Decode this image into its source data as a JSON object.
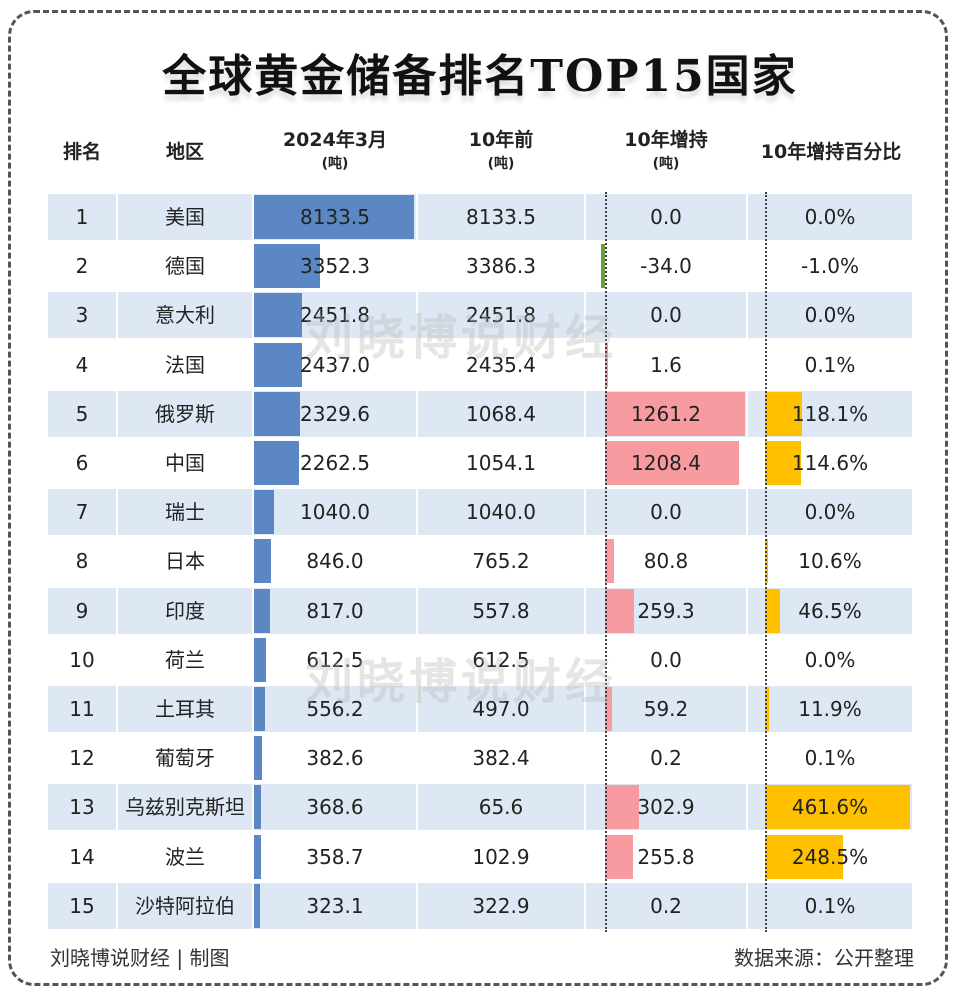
{
  "title": "全球黄金储备排名TOP15国家",
  "headers": {
    "rank": "排名",
    "region": "地区",
    "current": "2024年3月",
    "current_unit": "(吨)",
    "ago": "10年前",
    "ago_unit": "(吨)",
    "change": "10年增持",
    "change_unit": "(吨)",
    "pct": "10年增持百分比"
  },
  "rows": [
    {
      "rank": "1",
      "region": "美国",
      "current": "8133.5",
      "ago": "8133.5",
      "change": "0.0",
      "pct": "0.0%"
    },
    {
      "rank": "2",
      "region": "德国",
      "current": "3352.3",
      "ago": "3386.3",
      "change": "-34.0",
      "pct": "-1.0%"
    },
    {
      "rank": "3",
      "region": "意大利",
      "current": "2451.8",
      "ago": "2451.8",
      "change": "0.0",
      "pct": "0.0%"
    },
    {
      "rank": "4",
      "region": "法国",
      "current": "2437.0",
      "ago": "2435.4",
      "change": "1.6",
      "pct": "0.1%"
    },
    {
      "rank": "5",
      "region": "俄罗斯",
      "current": "2329.6",
      "ago": "1068.4",
      "change": "1261.2",
      "pct": "118.1%"
    },
    {
      "rank": "6",
      "region": "中国",
      "current": "2262.5",
      "ago": "1054.1",
      "change": "1208.4",
      "pct": "114.6%"
    },
    {
      "rank": "7",
      "region": "瑞士",
      "current": "1040.0",
      "ago": "1040.0",
      "change": "0.0",
      "pct": "0.0%"
    },
    {
      "rank": "8",
      "region": "日本",
      "current": "846.0",
      "ago": "765.2",
      "change": "80.8",
      "pct": "10.6%"
    },
    {
      "rank": "9",
      "region": "印度",
      "current": "817.0",
      "ago": "557.8",
      "change": "259.3",
      "pct": "46.5%"
    },
    {
      "rank": "10",
      "region": "荷兰",
      "current": "612.5",
      "ago": "612.5",
      "change": "0.0",
      "pct": "0.0%"
    },
    {
      "rank": "11",
      "region": "土耳其",
      "current": "556.2",
      "ago": "497.0",
      "change": "59.2",
      "pct": "11.9%"
    },
    {
      "rank": "12",
      "region": "葡萄牙",
      "current": "382.6",
      "ago": "382.4",
      "change": "0.2",
      "pct": "0.1%"
    },
    {
      "rank": "13",
      "region": "乌兹别克斯坦",
      "current": "368.6",
      "ago": "65.6",
      "change": "302.9",
      "pct": "461.6%"
    },
    {
      "rank": "14",
      "region": "波兰",
      "current": "358.7",
      "ago": "102.9",
      "change": "255.8",
      "pct": "248.5%"
    },
    {
      "rank": "15",
      "region": "沙特阿拉伯",
      "current": "323.1",
      "ago": "322.9",
      "change": "0.2",
      "pct": "0.1%"
    }
  ],
  "footer": {
    "credit": "刘晓博说财经 | 制图",
    "source": "数据来源：公开整理"
  },
  "watermark": "刘晓博说财经",
  "colors": {
    "current_bar": "#5b87c5",
    "change_positive_bar": "#f79ba0",
    "change_negative_bar": "#6a9f3e",
    "pct_bar": "#ffc000",
    "row_stripe": "#dde8f4"
  },
  "chart_data": {
    "type": "table",
    "title": "全球黄金储备排名TOP15国家",
    "columns": [
      "排名",
      "地区",
      "2024年3月(吨)",
      "10年前(吨)",
      "10年增持(吨)",
      "10年增持百分比"
    ],
    "categories": [
      "美国",
      "德国",
      "意大利",
      "法国",
      "俄罗斯",
      "中国",
      "瑞士",
      "日本",
      "印度",
      "荷兰",
      "土耳其",
      "葡萄牙",
      "乌兹别克斯坦",
      "波兰",
      "沙特阿拉伯"
    ],
    "series": [
      {
        "name": "2024年3月(吨)",
        "values": [
          8133.5,
          3352.3,
          2451.8,
          2437.0,
          2329.6,
          2262.5,
          1040.0,
          846.0,
          817.0,
          612.5,
          556.2,
          382.6,
          368.6,
          358.7,
          323.1
        ]
      },
      {
        "name": "10年前(吨)",
        "values": [
          8133.5,
          3386.3,
          2451.8,
          2435.4,
          1068.4,
          1054.1,
          1040.0,
          765.2,
          557.8,
          612.5,
          497.0,
          382.4,
          65.6,
          102.9,
          322.9
        ]
      },
      {
        "name": "10年增持(吨)",
        "values": [
          0.0,
          -34.0,
          0.0,
          1.6,
          1261.2,
          1208.4,
          0.0,
          80.8,
          259.3,
          0.0,
          59.2,
          0.2,
          302.9,
          255.8,
          0.2
        ]
      },
      {
        "name": "10年增持百分比(%)",
        "values": [
          0.0,
          -1.0,
          0.0,
          0.1,
          118.1,
          114.6,
          0.0,
          10.6,
          46.5,
          0.0,
          11.9,
          0.1,
          461.6,
          248.5,
          0.1
        ]
      }
    ],
    "source": "数据来源：公开整理"
  }
}
